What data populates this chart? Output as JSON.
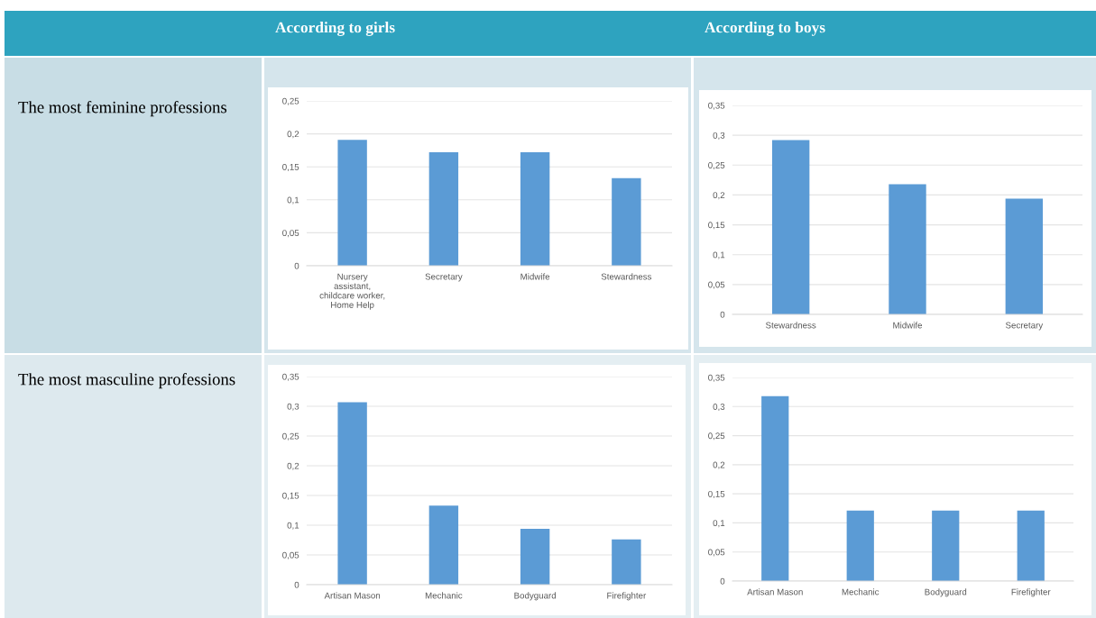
{
  "chart_data": [
    {
      "type": "bar",
      "annotations": [
        "According to girls",
        "The most feminine professions"
      ],
      "categories": [
        "Nursery\nassistant,\nchildcare worker,\nHome Help",
        "Secretary",
        "Midwife",
        "Stewardness"
      ],
      "values": [
        0.191,
        0.172,
        0.172,
        0.133
      ],
      "color": "#5b9bd5",
      "ylim": [
        0,
        0.25
      ],
      "yticks": [
        0,
        {
          "value": 0.05,
          "label": "0,05"
        },
        {
          "value": 0.1,
          "label": "0,1"
        },
        {
          "value": 0.15,
          "label": "0,15"
        },
        {
          "value": 0.2,
          "label": "0,2"
        },
        {
          "value": 0.25,
          "label": "0,25"
        }
      ],
      "grid": "y"
    },
    {
      "type": "bar",
      "annotations": [
        "According to boys"
      ],
      "categories": [
        "Stewardness",
        "Midwife",
        "Secretary"
      ],
      "values": [
        0.292,
        0.218,
        0.194
      ],
      "color": "#5b9bd5",
      "ylim": [
        0,
        0.35
      ],
      "yticks": [
        0,
        {
          "value": 0.05,
          "label": "0,05"
        },
        {
          "value": 0.1,
          "label": "0,1"
        },
        {
          "value": 0.15,
          "label": "0,15"
        },
        {
          "value": 0.2,
          "label": "0,2"
        },
        {
          "value": 0.25,
          "label": "0,25"
        },
        {
          "value": 0.3,
          "label": "0,3"
        },
        {
          "value": 0.35,
          "label": "0,35"
        }
      ],
      "grid": "y"
    },
    {
      "type": "bar",
      "annotations": [
        "The most masculine professions"
      ],
      "categories": [
        "Artisan Mason",
        "Mechanic",
        "Bodyguard",
        "Firefighter"
      ],
      "values": [
        0.307,
        0.133,
        0.094,
        0.076
      ],
      "color": "#5b9bd5",
      "ylim": [
        0,
        0.35
      ],
      "yticks": [
        0,
        {
          "value": 0.05,
          "label": "0,05"
        },
        {
          "value": 0.1,
          "label": "0,1"
        },
        {
          "value": 0.15,
          "label": "0,15"
        },
        {
          "value": 0.2,
          "label": "0,2"
        },
        {
          "value": 0.25,
          "label": "0,25"
        },
        {
          "value": 0.3,
          "label": "0,3"
        },
        {
          "value": 0.35,
          "label": "0,35"
        }
      ],
      "grid": "y"
    },
    {
      "type": "bar",
      "categories": [
        "Artisan Mason",
        "Mechanic",
        "Bodyguard",
        "Firefighter"
      ],
      "values": [
        0.318,
        0.121,
        0.121,
        0.121
      ],
      "color": "#5b9bd5",
      "ylim": [
        0,
        0.35
      ],
      "yticks": [
        0,
        {
          "value": 0.05,
          "label": "0,05"
        },
        {
          "value": 0.1,
          "label": "0,1"
        },
        {
          "value": 0.15,
          "label": "0,15"
        },
        {
          "value": 0.2,
          "label": "0,2"
        },
        {
          "value": 0.25,
          "label": "0,25"
        },
        {
          "value": 0.3,
          "label": "0,3"
        },
        {
          "value": 0.35,
          "label": "0,35"
        }
      ],
      "grid": "y"
    }
  ]
}
